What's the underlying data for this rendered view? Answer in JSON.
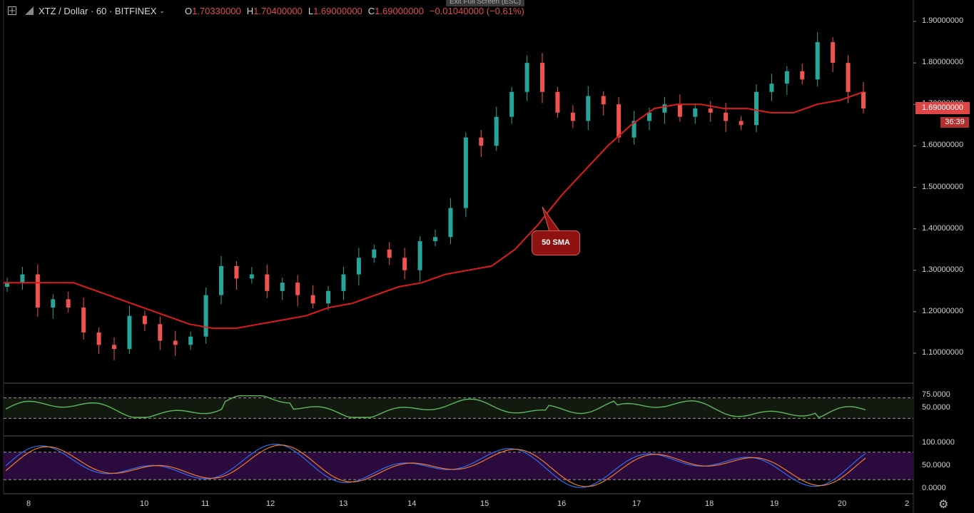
{
  "toolbar": {
    "symbol": "XTZ / Dollar · 60 · BITFINEX",
    "open_label": "O",
    "open": "1.70330000",
    "high_label": "H",
    "high": "1.70400000",
    "low_label": "L",
    "low": "1.69000000",
    "close_label": "C",
    "close": "1.69000000",
    "change": "−0.01040000 (−0.61%)",
    "fullscreen_tip": "Exit Full Screen (ESC)"
  },
  "price_axis": [
    "1.90000000",
    "1.80000000",
    "1.70000000",
    "1.60000000",
    "1.50000000",
    "1.40000000",
    "1.30000000",
    "1.20000000",
    "1.10000000"
  ],
  "last_price_tag": "1.69000000",
  "countdown": "36:39",
  "callout": "50 SMA",
  "rsi_axis": [
    "75.0000",
    "50.0000"
  ],
  "stoch_axis": [
    "100.0000",
    "50.0000",
    "0.0000"
  ],
  "time_axis": [
    "8",
    "10",
    "11",
    "12",
    "13",
    "14",
    "15",
    "16",
    "17",
    "18",
    "19",
    "20",
    "2"
  ],
  "colors": {
    "up": "#26a69a",
    "down": "#ef5350",
    "sma": "#e01b1b",
    "rsi": "#5cb85c",
    "stoch_k": "#2f6cf0",
    "stoch_d": "#f07a2f",
    "stoch_band": "#2b0a3d",
    "rsi_band": "#121a10"
  },
  "chart_data": {
    "type": "candlestick",
    "title": "",
    "series": [
      {
        "name": "50 SMA",
        "values": [
          1.27,
          1.27,
          1.27,
          1.27,
          1.25,
          1.23,
          1.21,
          1.19,
          1.17,
          1.16,
          1.16,
          1.17,
          1.18,
          1.19,
          1.21,
          1.22,
          1.24,
          1.26,
          1.27,
          1.29,
          1.3,
          1.31,
          1.35,
          1.41,
          1.48,
          1.54,
          1.6,
          1.65,
          1.69,
          1.7,
          1.7,
          1.69,
          1.69,
          1.68,
          1.68,
          1.7,
          1.71,
          1.73
        ]
      }
    ],
    "candle_closes": [
      1.27,
      1.29,
      1.21,
      1.23,
      1.21,
      1.15,
      1.12,
      1.11,
      1.19,
      1.17,
      1.13,
      1.12,
      1.14,
      1.24,
      1.31,
      1.28,
      1.29,
      1.25,
      1.27,
      1.24,
      1.22,
      1.25,
      1.29,
      1.33,
      1.35,
      1.33,
      1.3,
      1.37,
      1.38,
      1.45,
      1.62,
      1.6,
      1.67,
      1.73,
      1.8,
      1.73,
      1.68,
      1.66,
      1.72,
      1.7,
      1.62,
      1.66,
      1.68,
      1.7,
      1.67,
      1.69,
      1.68,
      1.66,
      1.65,
      1.73,
      1.75,
      1.78,
      1.76,
      1.85,
      1.8,
      1.73,
      1.69
    ],
    "xlim": [
      "8",
      "20"
    ],
    "ylim": [
      1.05,
      1.95
    ]
  }
}
